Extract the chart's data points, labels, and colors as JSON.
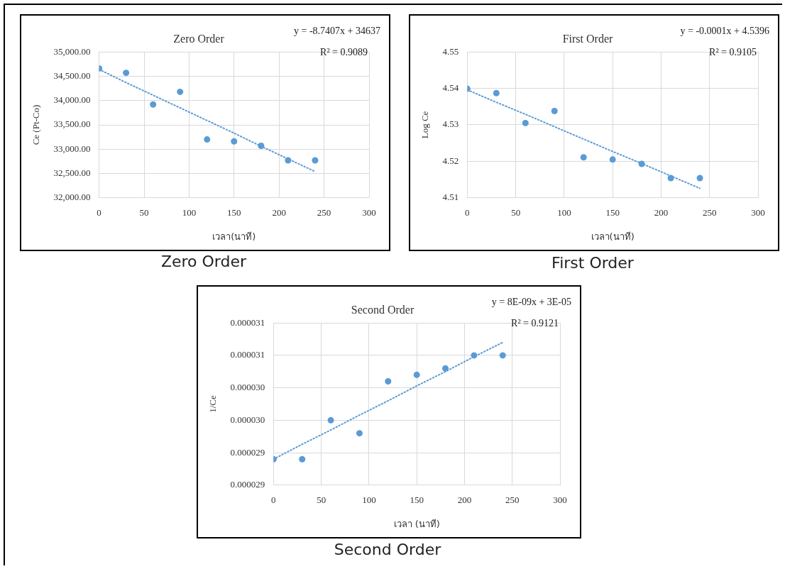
{
  "chart_data": [
    {
      "type": "scatter",
      "title": "Zero Order",
      "xlabel": "เวลา(นาที)",
      "ylabel": "Ce (Pt-Co)",
      "x": [
        0,
        30,
        60,
        90,
        120,
        150,
        180,
        210,
        240
      ],
      "series": [
        {
          "color": "#5b9bd5",
          "values": [
            34660,
            34570,
            33920,
            34180,
            33200,
            33160,
            33070,
            32770,
            32770
          ],
          "marker": "circle"
        },
        {
          "type": "line",
          "color": "#5b9bd5",
          "values": [
            34640,
            34370,
            34110,
            33850,
            33590,
            33330,
            33060,
            32800,
            32540
          ],
          "marker": "none",
          "line_style": "dotted"
        }
      ],
      "xlim": [
        0,
        300
      ],
      "xticks": [
        0,
        50,
        100,
        150,
        200,
        250,
        300
      ],
      "ylim": [
        32000,
        35000
      ],
      "yticks": [
        {
          "value": 32000,
          "label": "32,000.00"
        },
        {
          "value": 32500,
          "label": "32,500.00"
        },
        {
          "value": 33000,
          "label": "33,000.00"
        },
        {
          "value": 33500,
          "label": "33,500.00"
        },
        {
          "value": 34000,
          "label": "34,000.00"
        },
        {
          "value": 34500,
          "label": "34,500.00"
        },
        {
          "value": 35000,
          "label": "35,000.00"
        }
      ],
      "grid": true,
      "annotations": [
        "y = -8.7407x + 34637",
        "R² = 0.9089",
        "Zero Order"
      ]
    },
    {
      "type": "scatter",
      "title": "First Order",
      "xlabel": "เวลา(นาที)",
      "ylabel": "Log Ce",
      "x": [
        0,
        30,
        60,
        90,
        120,
        150,
        180,
        210,
        240
      ],
      "series": [
        {
          "color": "#5b9bd5",
          "values": [
            4.5399,
            4.5387,
            4.5305,
            4.5338,
            4.5211,
            4.5205,
            4.5193,
            4.5154,
            4.5154
          ],
          "marker": "circle"
        },
        {
          "type": "line",
          "color": "#5b9bd5",
          "values": [
            4.5396,
            4.5362,
            4.5329,
            4.5295,
            4.5261,
            4.5227,
            4.5194,
            4.516,
            4.5126
          ],
          "marker": "none",
          "line_style": "dotted"
        }
      ],
      "xlim": [
        0,
        300
      ],
      "xticks": [
        0,
        50,
        100,
        150,
        200,
        250,
        300
      ],
      "ylim": [
        4.51,
        4.55
      ],
      "yticks": [
        4.51,
        4.52,
        4.53,
        4.54,
        4.55
      ],
      "grid": true,
      "annotations": [
        "y = -0.0001x + 4.5396",
        "R² = 0.9105",
        "First Order"
      ]
    },
    {
      "type": "scatter",
      "title": "Second Order",
      "xlabel": "เวลา (นาที)",
      "ylabel": "1/Ce",
      "x": [
        0,
        30,
        60,
        90,
        120,
        150,
        180,
        210,
        240
      ],
      "series": [
        {
          "color": "#5b9bd5",
          "values": [
            2.89e-05,
            2.89e-05,
            2.95e-05,
            2.93e-05,
            3.01e-05,
            3.02e-05,
            3.03e-05,
            3.05e-05,
            3.05e-05
          ],
          "marker": "circle"
        },
        {
          "type": "line",
          "color": "#5b9bd5",
          "values": [
            2.89e-05,
            2.913e-05,
            2.935e-05,
            2.958e-05,
            2.98e-05,
            3.003e-05,
            3.025e-05,
            3.048e-05,
            3.07e-05
          ],
          "marker": "none",
          "line_style": "dotted"
        }
      ],
      "xlim": [
        0,
        300
      ],
      "xticks": [
        0,
        50,
        100,
        150,
        200,
        250,
        300
      ],
      "ylim": [
        2.85e-05,
        3.1e-05
      ],
      "yticks": [
        {
          "value": 2.85e-05,
          "label": "0.000029"
        },
        {
          "value": 2.9e-05,
          "label": "0.000029"
        },
        {
          "value": 2.95e-05,
          "label": "0.000030"
        },
        {
          "value": 3e-05,
          "label": "0.000030"
        },
        {
          "value": 3.05e-05,
          "label": "0.000031"
        },
        {
          "value": 3.1e-05,
          "label": "0.000031"
        }
      ],
      "grid": true,
      "annotations": [
        "y = 8E-09x + 3E-05",
        "R² = 0.9121",
        "Second Order"
      ]
    }
  ]
}
